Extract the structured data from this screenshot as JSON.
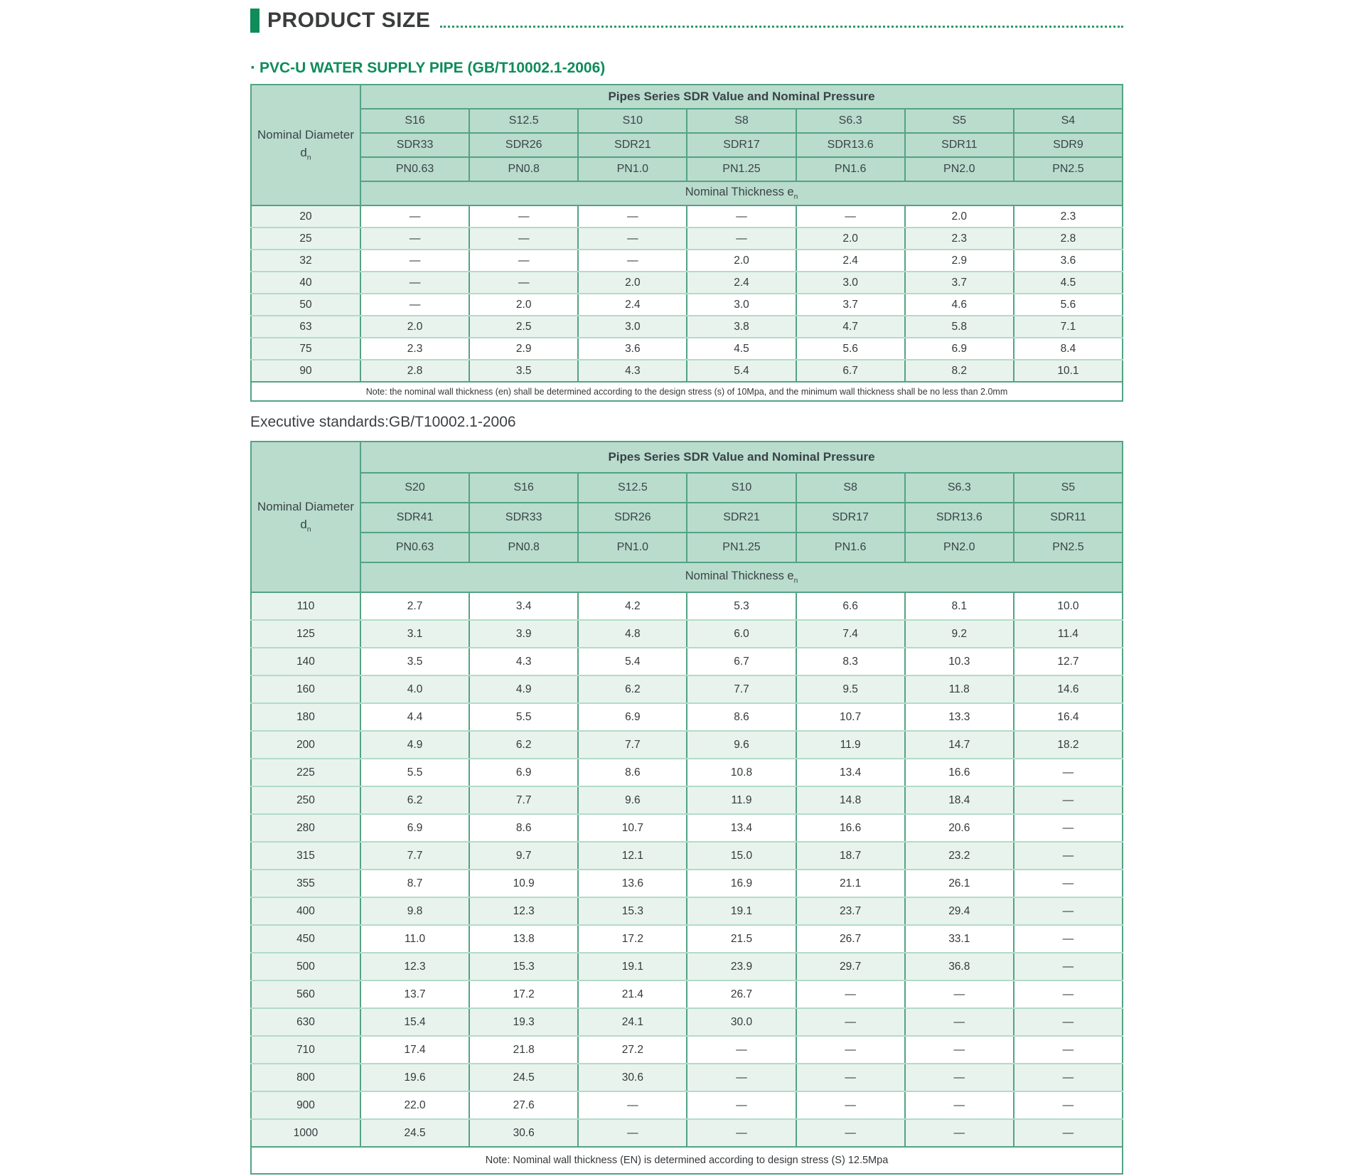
{
  "header": {
    "title": "PRODUCT SIZE"
  },
  "section": {
    "bullet": "·",
    "title": "PVC-U WATER SUPPLY PIPE (GB/T10002.1-2006)"
  },
  "executive_standards": "Executive standards:GB/T10002.1-2006",
  "colors": {
    "accent_green": "#0e8c5a",
    "header_cell_bg": "#b9dccd",
    "tint_cell_bg": "#e8f3ee",
    "strong_border": "#53a384",
    "light_border": "#b3dbc9",
    "title_text": "#3a3d3c"
  },
  "table1": {
    "corner": {
      "label": "Nominal Diameter",
      "symbol": "d",
      "symbol_sub": "n"
    },
    "group_header": "Pipes Series SDR Value and Nominal Pressure",
    "thickness": {
      "label": "Nominal Thickness e",
      "sub": "n"
    },
    "series": [
      "S16",
      "S12.5",
      "S10",
      "S8",
      "S6.3",
      "S5",
      "S4"
    ],
    "sdr": [
      "SDR33",
      "SDR26",
      "SDR21",
      "SDR17",
      "SDR13.6",
      "SDR11",
      "SDR9"
    ],
    "pn": [
      "PN0.63",
      "PN0.8",
      "PN1.0",
      "PN1.25",
      "PN1.6",
      "PN2.0",
      "PN2.5"
    ],
    "rows": [
      {
        "dn": "20",
        "values": [
          "—",
          "—",
          "—",
          "—",
          "—",
          "2.0",
          "2.3"
        ]
      },
      {
        "dn": "25",
        "values": [
          "—",
          "—",
          "—",
          "—",
          "2.0",
          "2.3",
          "2.8"
        ]
      },
      {
        "dn": "32",
        "values": [
          "—",
          "—",
          "—",
          "2.0",
          "2.4",
          "2.9",
          "3.6"
        ]
      },
      {
        "dn": "40",
        "values": [
          "—",
          "—",
          "2.0",
          "2.4",
          "3.0",
          "3.7",
          "4.5"
        ]
      },
      {
        "dn": "50",
        "values": [
          "—",
          "2.0",
          "2.4",
          "3.0",
          "3.7",
          "4.6",
          "5.6"
        ]
      },
      {
        "dn": "63",
        "values": [
          "2.0",
          "2.5",
          "3.0",
          "3.8",
          "4.7",
          "5.8",
          "7.1"
        ]
      },
      {
        "dn": "75",
        "values": [
          "2.3",
          "2.9",
          "3.6",
          "4.5",
          "5.6",
          "6.9",
          "8.4"
        ]
      },
      {
        "dn": "90",
        "values": [
          "2.8",
          "3.5",
          "4.3",
          "5.4",
          "6.7",
          "8.2",
          "10.1"
        ]
      }
    ],
    "note": "Note: the nominal wall thickness (en) shall be determined according to the design stress (s) of 10Mpa, and the minimum wall thickness shall be no less than 2.0mm"
  },
  "table2": {
    "corner": {
      "label": "Nominal Diameter",
      "symbol": "d",
      "symbol_sub": "n"
    },
    "group_header": "Pipes Series SDR Value and Nominal Pressure",
    "thickness": {
      "label": "Nominal Thickness e",
      "sub": "n"
    },
    "series": [
      "S20",
      "S16",
      "S12.5",
      "S10",
      "S8",
      "S6.3",
      "S5"
    ],
    "sdr": [
      "SDR41",
      "SDR33",
      "SDR26",
      "SDR21",
      "SDR17",
      "SDR13.6",
      "SDR11"
    ],
    "pn": [
      "PN0.63",
      "PN0.8",
      "PN1.0",
      "PN1.25",
      "PN1.6",
      "PN2.0",
      "PN2.5"
    ],
    "rows": [
      {
        "dn": "110",
        "values": [
          "2.7",
          "3.4",
          "4.2",
          "5.3",
          "6.6",
          "8.1",
          "10.0"
        ]
      },
      {
        "dn": "125",
        "values": [
          "3.1",
          "3.9",
          "4.8",
          "6.0",
          "7.4",
          "9.2",
          "11.4"
        ]
      },
      {
        "dn": "140",
        "values": [
          "3.5",
          "4.3",
          "5.4",
          "6.7",
          "8.3",
          "10.3",
          "12.7"
        ]
      },
      {
        "dn": "160",
        "values": [
          "4.0",
          "4.9",
          "6.2",
          "7.7",
          "9.5",
          "11.8",
          "14.6"
        ]
      },
      {
        "dn": "180",
        "values": [
          "4.4",
          "5.5",
          "6.9",
          "8.6",
          "10.7",
          "13.3",
          "16.4"
        ]
      },
      {
        "dn": "200",
        "values": [
          "4.9",
          "6.2",
          "7.7",
          "9.6",
          "11.9",
          "14.7",
          "18.2"
        ]
      },
      {
        "dn": "225",
        "values": [
          "5.5",
          "6.9",
          "8.6",
          "10.8",
          "13.4",
          "16.6",
          "—"
        ]
      },
      {
        "dn": "250",
        "values": [
          "6.2",
          "7.7",
          "9.6",
          "11.9",
          "14.8",
          "18.4",
          "—"
        ]
      },
      {
        "dn": "280",
        "values": [
          "6.9",
          "8.6",
          "10.7",
          "13.4",
          "16.6",
          "20.6",
          "—"
        ]
      },
      {
        "dn": "315",
        "values": [
          "7.7",
          "9.7",
          "12.1",
          "15.0",
          "18.7",
          "23.2",
          "—"
        ]
      },
      {
        "dn": "355",
        "values": [
          "8.7",
          "10.9",
          "13.6",
          "16.9",
          "21.1",
          "26.1",
          "—"
        ]
      },
      {
        "dn": "400",
        "values": [
          "9.8",
          "12.3",
          "15.3",
          "19.1",
          "23.7",
          "29.4",
          "—"
        ]
      },
      {
        "dn": "450",
        "values": [
          "11.0",
          "13.8",
          "17.2",
          "21.5",
          "26.7",
          "33.1",
          "—"
        ]
      },
      {
        "dn": "500",
        "values": [
          "12.3",
          "15.3",
          "19.1",
          "23.9",
          "29.7",
          "36.8",
          "—"
        ]
      },
      {
        "dn": "560",
        "values": [
          "13.7",
          "17.2",
          "21.4",
          "26.7",
          "—",
          "—",
          "—"
        ]
      },
      {
        "dn": "630",
        "values": [
          "15.4",
          "19.3",
          "24.1",
          "30.0",
          "—",
          "—",
          "—"
        ]
      },
      {
        "dn": "710",
        "values": [
          "17.4",
          "21.8",
          "27.2",
          "—",
          "—",
          "—",
          "—"
        ]
      },
      {
        "dn": "800",
        "values": [
          "19.6",
          "24.5",
          "30.6",
          "—",
          "—",
          "—",
          "—"
        ]
      },
      {
        "dn": "900",
        "values": [
          "22.0",
          "27.6",
          "—",
          "—",
          "—",
          "—",
          "—"
        ]
      },
      {
        "dn": "1000",
        "values": [
          "24.5",
          "30.6",
          "—",
          "—",
          "—",
          "—",
          "—"
        ]
      }
    ],
    "note": "Note: Nominal wall thickness (EN) is determined according to design stress (S) 12.5Mpa"
  }
}
